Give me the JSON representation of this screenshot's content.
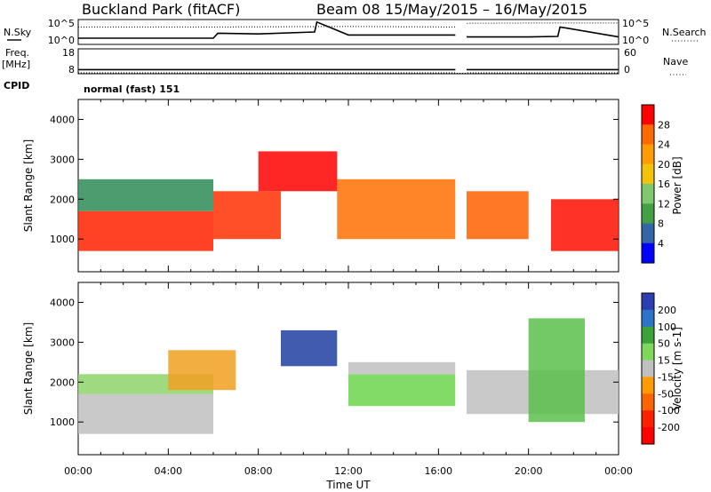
{
  "title": {
    "station": "Buckland Park (fitACF)",
    "beam": "Beam 08",
    "dates": "15/May/2015 – 16/May/2015"
  },
  "legend": {
    "nsky": "N.Sky",
    "nsearch": "N.Search",
    "freq_top": "Freq.",
    "freq_bottom": "[MHz]",
    "nave": "Nave",
    "cpid_label": "CPID",
    "cpid_value": "normal (fast) 151"
  },
  "xlabel": "Time UT",
  "chart_data": [
    {
      "type": "line",
      "panel": "noise",
      "left_ticks": [
        "10^5",
        "10^0"
      ],
      "right_ticks": [
        "10^5",
        "10^0"
      ],
      "series": [
        {
          "name": "N.Sky",
          "x_hours": [
            0,
            6,
            6.2,
            8,
            10.5,
            10.6,
            12,
            16.7,
            17.3,
            20,
            21.3,
            21.4,
            24
          ],
          "y_level": [
            0.25,
            0.25,
            0.45,
            0.42,
            0.5,
            0.9,
            0.38,
            0.38,
            0.3,
            0.3,
            0.32,
            0.7,
            0.3
          ]
        },
        {
          "name": "N.Search",
          "x_hours": [
            0,
            6,
            12,
            16.7,
            17.3,
            20,
            24
          ],
          "y_level": [
            0.7,
            0.7,
            0.72,
            0.7,
            0.85,
            0.86,
            0.86
          ]
        }
      ],
      "gap_hours": [
        16.75,
        17.25
      ]
    },
    {
      "type": "line",
      "panel": "frequency",
      "left_ticks": [
        "18",
        "8"
      ],
      "right_ticks": [
        "60",
        "0"
      ],
      "series": [
        {
          "name": "Freq.",
          "x_hours": [
            0,
            16.75,
            17.25,
            24
          ],
          "values": [
            10,
            10,
            10,
            10
          ]
        },
        {
          "name": "Nave",
          "x_hours": [
            0,
            16.75,
            17.25,
            24
          ],
          "values": [
            8,
            8,
            8,
            8
          ]
        }
      ],
      "gap_hours": [
        16.75,
        17.25
      ]
    },
    {
      "type": "heatmap",
      "panel": "power",
      "ylabel": "Slant Range [km]",
      "yticks": [
        "1000",
        "2000",
        "3000",
        "4000"
      ],
      "xticks": [
        "00:00",
        "04:00",
        "08:00",
        "12:00",
        "16:00",
        "20:00",
        "00:00"
      ],
      "ylim": [
        180,
        4500
      ],
      "xlim_hours": [
        0,
        24
      ],
      "colorbar_label": "Power [dB]",
      "colorbar_ticks": [
        "28",
        "24",
        "20",
        "16",
        "12",
        "8",
        "4"
      ],
      "colorbar_colors": [
        "#ff0000",
        "#ff6a00",
        "#ff9d00",
        "#f3c20b",
        "#7fc86c",
        "#43a044",
        "#3366a6",
        "#0000ff"
      ],
      "bands": [
        {
          "x_hours": [
            0,
            6
          ],
          "range": [
            700,
            1700
          ],
          "color": "#ff2000"
        },
        {
          "x_hours": [
            0,
            6
          ],
          "range": [
            1700,
            2500
          ],
          "color": "#2e8b57"
        },
        {
          "x_hours": [
            6,
            9
          ],
          "range": [
            1000,
            2200
          ],
          "color": "#ff3000"
        },
        {
          "x_hours": [
            8,
            11.5
          ],
          "range": [
            2200,
            3200
          ],
          "color": "#ff0000"
        },
        {
          "x_hours": [
            11.5,
            16.75
          ],
          "range": [
            1000,
            2500
          ],
          "color": "#ff7000"
        },
        {
          "x_hours": [
            17.25,
            20
          ],
          "range": [
            1000,
            2200
          ],
          "color": "#ff6000"
        },
        {
          "x_hours": [
            21,
            24
          ],
          "range": [
            700,
            2000
          ],
          "color": "#ff1000"
        }
      ],
      "gap_hours": [
        16.75,
        17.25
      ]
    },
    {
      "type": "heatmap",
      "panel": "velocity",
      "ylabel": "Slant Range [km]",
      "yticks": [
        "1000",
        "2000",
        "3000",
        "4000"
      ],
      "xticks": [
        "00:00",
        "04:00",
        "08:00",
        "12:00",
        "16:00",
        "20:00",
        "00:00"
      ],
      "ylim": [
        180,
        4500
      ],
      "xlim_hours": [
        0,
        24
      ],
      "colorbar_label": "Velocity [m s-1]",
      "colorbar_ticks": [
        "200",
        "100",
        "50",
        "15",
        "-15",
        "-50",
        "-100",
        "-200"
      ],
      "colorbar_colors": [
        "#2b3fb3",
        "#2d74c8",
        "#3ba33a",
        "#7fd85c",
        "#c0c0c0",
        "#ff9b00",
        "#ff6400",
        "#ff2000",
        "#ff0000"
      ],
      "bands": [
        {
          "x_hours": [
            0,
            6
          ],
          "range": [
            700,
            1700
          ],
          "color": "#c0c0c0"
        },
        {
          "x_hours": [
            0,
            6
          ],
          "range": [
            1700,
            2200
          ],
          "color": "#8fd46a"
        },
        {
          "x_hours": [
            4,
            7
          ],
          "range": [
            1800,
            2800
          ],
          "color": "#f0a020"
        },
        {
          "x_hours": [
            9,
            11.5
          ],
          "range": [
            2400,
            3300
          ],
          "color": "#2040a0"
        },
        {
          "x_hours": [
            12,
            16.75
          ],
          "range": [
            1400,
            2200
          ],
          "color": "#6cd44c"
        },
        {
          "x_hours": [
            12,
            16.75
          ],
          "range": [
            2200,
            2500
          ],
          "color": "#c0c0c0"
        },
        {
          "x_hours": [
            17.25,
            24
          ],
          "range": [
            1200,
            2300
          ],
          "color": "#c0c0c0"
        },
        {
          "x_hours": [
            20,
            22.5
          ],
          "range": [
            1000,
            3600
          ],
          "color": "#5cc04c"
        }
      ],
      "gap_hours": [
        16.75,
        17.25
      ]
    }
  ]
}
